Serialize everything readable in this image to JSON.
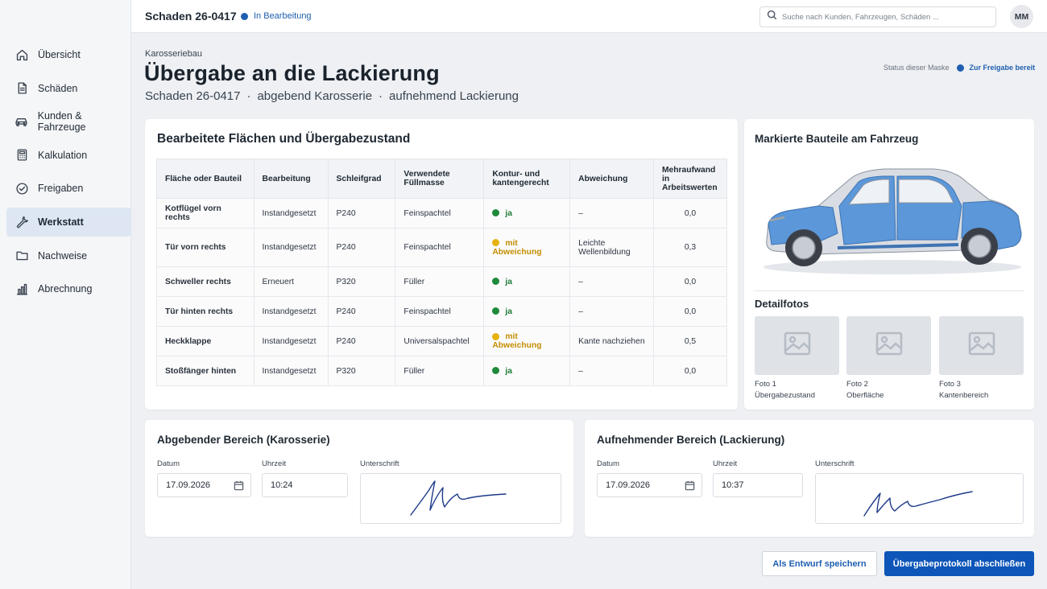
{
  "app": {
    "case_title": "Schaden 26-0417",
    "case_status": "In Bearbeitung",
    "search_placeholder": "Suche nach Kunden, Fahrzeugen, Schäden ...",
    "user_initials": "MM"
  },
  "sidebar": {
    "items": [
      {
        "label": "Übersicht",
        "icon": "home-icon"
      },
      {
        "label": "Schäden",
        "icon": "document-icon"
      },
      {
        "label": "Kunden & Fahrzeuge",
        "icon": "car-icon"
      },
      {
        "label": "Kalkulation",
        "icon": "calculator-icon"
      },
      {
        "label": "Freigaben",
        "icon": "check-circle-icon"
      },
      {
        "label": "Werkstatt",
        "icon": "wrench-icon",
        "active": true
      },
      {
        "label": "Nachweise",
        "icon": "folder-icon"
      },
      {
        "label": "Abrechnung",
        "icon": "bar-chart-icon"
      }
    ]
  },
  "header": {
    "eyebrow": "Karosseriebau",
    "title": "Übergabe an die Lackierung",
    "subtitle_case": "Schaden 26-0417",
    "subtitle_from": "abgebend Karosserie",
    "subtitle_to": "aufnehmend Lackierung",
    "separator": "·",
    "mask_status_label": "Status dieser Maske",
    "mask_status_value": "Zur Freigabe bereit",
    "status_color": "#1f5fb0"
  },
  "surfaces": {
    "title": "Bearbeitete Flächen und Übergabezustand",
    "columns": [
      "Fläche oder Bauteil",
      "Bearbeitung",
      "Schleifgrad",
      "Verwendete Füllmasse",
      "Kontur- und kantengerecht",
      "Abweichung",
      "Mehraufwand in Arbeitswerten"
    ],
    "rows": [
      {
        "area": "Kotflügel vorn rechts",
        "work": "Instandgesetzt",
        "grit": "P240",
        "filler": "Feinspachtel",
        "contour": "ja",
        "contour_state": "ok",
        "deviation": "–",
        "extra": "0,0"
      },
      {
        "area": "Tür vorn rechts",
        "work": "Instandgesetzt",
        "grit": "P240",
        "filler": "Feinspachtel",
        "contour": "mit Abweichung",
        "contour_state": "warn",
        "deviation": "Leichte Wellenbildung",
        "extra": "0,3"
      },
      {
        "area": "Schweller rechts",
        "work": "Erneuert",
        "grit": "P320",
        "filler": "Füller",
        "contour": "ja",
        "contour_state": "ok",
        "deviation": "–",
        "extra": "0,0"
      },
      {
        "area": "Tür hinten rechts",
        "work": "Instandgesetzt",
        "grit": "P240",
        "filler": "Feinspachtel",
        "contour": "ja",
        "contour_state": "ok",
        "deviation": "–",
        "extra": "0,0"
      },
      {
        "area": "Heckklappe",
        "work": "Instandgesetzt",
        "grit": "P240",
        "filler": "Universalspachtel",
        "contour": "mit Abweichung",
        "contour_state": "warn",
        "deviation": "Kante nachziehen",
        "extra": "0,5"
      },
      {
        "area": "Stoßfänger hinten",
        "work": "Instandgesetzt",
        "grit": "P320",
        "filler": "Füller",
        "contour": "ja",
        "contour_state": "ok",
        "deviation": "–",
        "extra": "0,0"
      }
    ],
    "ok_color": "#1e8a3a",
    "warn_color": "#e7b10f"
  },
  "vehicle": {
    "title": "Markierte Bauteile am Fahrzeug",
    "highlight_color": "#4f8fd6",
    "photos_title": "Detailfotos",
    "photos": [
      {
        "label": "Foto 1",
        "caption": "Übergabezustand"
      },
      {
        "label": "Foto 2",
        "caption": "Oberfläche"
      },
      {
        "label": "Foto 3",
        "caption": "Kantenbereich"
      }
    ]
  },
  "handover_from": {
    "title": "Abgebender Bereich (Karosserie)",
    "date_label": "Datum",
    "date": "17.09.2026",
    "time_label": "Uhrzeit",
    "time": "10:24",
    "signature_label": "Unterschrift"
  },
  "handover_to": {
    "title": "Aufnehmender Bereich (Lackierung)",
    "date_label": "Datum",
    "date": "17.09.2026",
    "time_label": "Uhrzeit",
    "time": "10:37",
    "signature_label": "Unterschrift"
  },
  "actions": {
    "save_draft": "Als Entwurf speichern",
    "finish": "Übergabeprotokoll abschließen",
    "primary_color": "#0d55b8"
  }
}
